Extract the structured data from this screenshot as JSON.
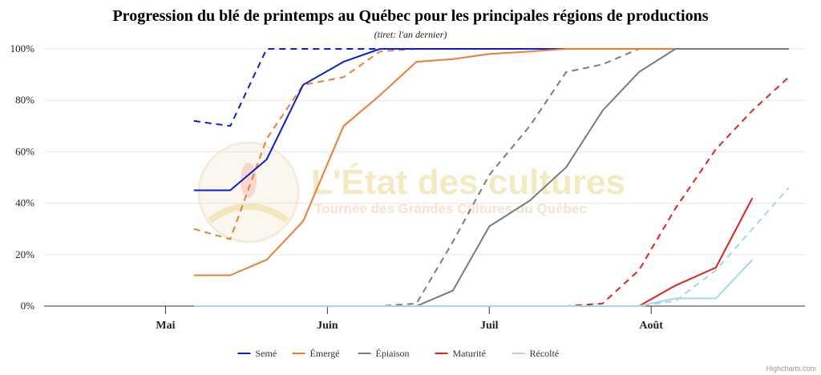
{
  "chart_data": {
    "type": "line",
    "title": "Progression du blé de printemps au Québec pour les principales régions de productions",
    "subtitle": "(tiret: l'an dernier)",
    "yaxis": {
      "min": 0,
      "max": 100,
      "ticks": [
        "0%",
        "20%",
        "40%",
        "60%",
        "80%",
        "100%"
      ],
      "tick_values": [
        0,
        20,
        40,
        60,
        80,
        100
      ],
      "grid": true
    },
    "xaxis": {
      "ticks": [
        "Mai",
        "Juin",
        "Juil",
        "Août"
      ],
      "tick_positions": [
        3,
        7,
        11,
        15
      ],
      "min": 0,
      "max": 18.8
    },
    "legend": {
      "placement": "bottom-center"
    },
    "credits": "Highcharts.com",
    "watermark": {
      "title": "L'État des cultures",
      "subtitle": "Tournée des Grandes Cultures du Québec"
    },
    "series": [
      {
        "name": "Semé",
        "color": "#0a1fd0",
        "dashed": false,
        "points": [
          [
            3.7,
            45
          ],
          [
            4.6,
            45
          ],
          [
            5.5,
            57
          ],
          [
            6.4,
            86
          ],
          [
            7.4,
            95
          ],
          [
            8.3,
            100
          ],
          [
            9.2,
            100
          ],
          [
            10.1,
            100
          ],
          [
            11.0,
            100
          ],
          [
            12.0,
            100
          ],
          [
            12.9,
            100
          ],
          [
            13.8,
            100
          ],
          [
            14.7,
            100
          ],
          [
            15.6,
            100
          ],
          [
            16.6,
            100
          ],
          [
            17.5,
            100
          ],
          [
            18.4,
            100
          ]
        ]
      },
      {
        "name": "Émergé",
        "color": "#ed7d31",
        "dashed": false,
        "points": [
          [
            3.7,
            12
          ],
          [
            4.6,
            12
          ],
          [
            5.5,
            18
          ],
          [
            6.4,
            33
          ],
          [
            7.4,
            70
          ],
          [
            8.3,
            82
          ],
          [
            9.2,
            95
          ],
          [
            10.1,
            96
          ],
          [
            11.0,
            98
          ],
          [
            12.0,
            99
          ],
          [
            12.9,
            100
          ],
          [
            13.8,
            100
          ],
          [
            14.7,
            100
          ],
          [
            15.6,
            100
          ],
          [
            16.6,
            100
          ],
          [
            17.5,
            100
          ],
          [
            18.4,
            100
          ]
        ]
      },
      {
        "name": "Épiaison",
        "color": "#7b7b7b",
        "dashed": false,
        "points": [
          [
            3.7,
            0
          ],
          [
            4.6,
            0
          ],
          [
            5.5,
            0
          ],
          [
            6.4,
            0
          ],
          [
            7.4,
            0
          ],
          [
            8.3,
            0
          ],
          [
            9.2,
            0
          ],
          [
            10.1,
            6
          ],
          [
            11.0,
            31
          ],
          [
            12.0,
            41
          ],
          [
            12.9,
            54
          ],
          [
            13.8,
            76
          ],
          [
            14.7,
            91
          ],
          [
            15.6,
            100
          ],
          [
            16.6,
            100
          ],
          [
            17.5,
            100
          ],
          [
            18.4,
            100
          ]
        ]
      },
      {
        "name": "Maturité",
        "color": "#e8201a",
        "dashed": false,
        "points": [
          [
            3.7,
            0
          ],
          [
            4.6,
            0
          ],
          [
            5.5,
            0
          ],
          [
            6.4,
            0
          ],
          [
            7.4,
            0
          ],
          [
            8.3,
            0
          ],
          [
            9.2,
            0
          ],
          [
            10.1,
            0
          ],
          [
            11.0,
            0
          ],
          [
            12.0,
            0
          ],
          [
            12.9,
            0
          ],
          [
            13.8,
            0
          ],
          [
            14.7,
            0
          ],
          [
            15.6,
            8
          ],
          [
            16.6,
            15
          ],
          [
            17.5,
            42
          ]
        ]
      },
      {
        "name": "Récolté",
        "color": "#a5d6ea",
        "dashed": false,
        "points": [
          [
            3.7,
            0
          ],
          [
            4.6,
            0
          ],
          [
            5.5,
            0
          ],
          [
            6.4,
            0
          ],
          [
            7.4,
            0
          ],
          [
            8.3,
            0
          ],
          [
            9.2,
            0
          ],
          [
            10.1,
            0
          ],
          [
            11.0,
            0
          ],
          [
            12.0,
            0
          ],
          [
            12.9,
            0
          ],
          [
            13.8,
            0
          ],
          [
            14.7,
            0
          ],
          [
            15.6,
            3
          ],
          [
            16.6,
            3
          ],
          [
            17.5,
            18
          ]
        ]
      },
      {
        "name": "Semé (an dernier)",
        "color": "#0a1fd0",
        "dashed": true,
        "legend": false,
        "points": [
          [
            3.7,
            72
          ],
          [
            4.6,
            70
          ],
          [
            5.5,
            100
          ],
          [
            6.4,
            100
          ],
          [
            7.4,
            100
          ],
          [
            8.3,
            100
          ],
          [
            9.2,
            100
          ],
          [
            10.1,
            100
          ],
          [
            11.0,
            100
          ],
          [
            12.0,
            100
          ],
          [
            12.9,
            100
          ],
          [
            13.8,
            100
          ],
          [
            14.7,
            100
          ],
          [
            15.6,
            100
          ],
          [
            16.6,
            100
          ],
          [
            17.5,
            100
          ],
          [
            18.4,
            100
          ]
        ]
      },
      {
        "name": "Émergé (an dernier)",
        "color": "#ed7d31",
        "dashed": true,
        "legend": false,
        "points": [
          [
            3.7,
            30
          ],
          [
            4.6,
            26
          ],
          [
            5.5,
            65
          ],
          [
            6.4,
            86
          ],
          [
            7.4,
            89
          ],
          [
            8.3,
            99
          ],
          [
            9.2,
            100
          ],
          [
            10.1,
            100
          ],
          [
            11.0,
            100
          ],
          [
            12.0,
            100
          ],
          [
            12.9,
            100
          ],
          [
            13.8,
            100
          ],
          [
            14.7,
            100
          ],
          [
            15.6,
            100
          ],
          [
            16.6,
            100
          ],
          [
            17.5,
            100
          ],
          [
            18.4,
            100
          ]
        ]
      },
      {
        "name": "Épiaison (an dernier)",
        "color": "#7b7b7b",
        "dashed": true,
        "legend": false,
        "points": [
          [
            3.7,
            0
          ],
          [
            4.6,
            0
          ],
          [
            5.5,
            0
          ],
          [
            6.4,
            0
          ],
          [
            7.4,
            0
          ],
          [
            8.3,
            0
          ],
          [
            9.2,
            1
          ],
          [
            10.1,
            25
          ],
          [
            11.0,
            51
          ],
          [
            12.0,
            70
          ],
          [
            12.9,
            91
          ],
          [
            13.8,
            94
          ],
          [
            14.7,
            100
          ],
          [
            15.6,
            100
          ],
          [
            16.6,
            100
          ],
          [
            17.5,
            100
          ],
          [
            18.4,
            100
          ]
        ]
      },
      {
        "name": "Maturité (an dernier)",
        "color": "#e8201a",
        "dashed": true,
        "legend": false,
        "points": [
          [
            3.7,
            0
          ],
          [
            4.6,
            0
          ],
          [
            5.5,
            0
          ],
          [
            6.4,
            0
          ],
          [
            7.4,
            0
          ],
          [
            8.3,
            0
          ],
          [
            9.2,
            0
          ],
          [
            10.1,
            0
          ],
          [
            11.0,
            0
          ],
          [
            12.0,
            0
          ],
          [
            12.9,
            0
          ],
          [
            13.8,
            1
          ],
          [
            14.7,
            14
          ],
          [
            15.6,
            38
          ],
          [
            16.6,
            61
          ],
          [
            17.5,
            76
          ],
          [
            18.4,
            89
          ]
        ]
      },
      {
        "name": "Récolté (an dernier)",
        "color": "#a5d6ea",
        "dashed": true,
        "legend": false,
        "points": [
          [
            3.7,
            0
          ],
          [
            4.6,
            0
          ],
          [
            5.5,
            0
          ],
          [
            6.4,
            0
          ],
          [
            7.4,
            0
          ],
          [
            8.3,
            0
          ],
          [
            9.2,
            0
          ],
          [
            10.1,
            0
          ],
          [
            11.0,
            0
          ],
          [
            12.0,
            0
          ],
          [
            12.9,
            0
          ],
          [
            13.8,
            0
          ],
          [
            14.7,
            0
          ],
          [
            15.6,
            2
          ],
          [
            16.6,
            14
          ],
          [
            17.5,
            30
          ],
          [
            18.4,
            46
          ]
        ]
      }
    ]
  }
}
